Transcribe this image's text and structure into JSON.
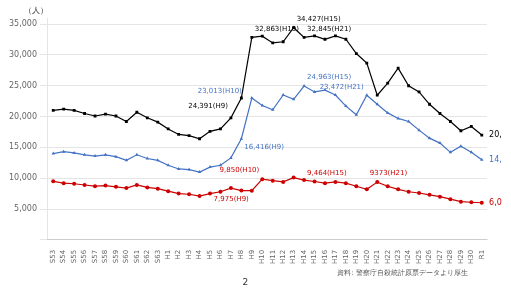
{
  "chart_data": {
    "type": "line",
    "categories": [
      "S53",
      "S54",
      "S55",
      "S56",
      "S57",
      "S58",
      "S59",
      "S60",
      "S61",
      "S62",
      "S63",
      "H1",
      "H2",
      "H3",
      "H4",
      "H5",
      "H6",
      "H7",
      "H8",
      "H9",
      "H10",
      "H11",
      "H12",
      "H13",
      "H14",
      "H15",
      "H16",
      "H17",
      "H18",
      "H19",
      "H20",
      "H21",
      "H22",
      "H23",
      "H24",
      "H25",
      "H26",
      "H27",
      "H28",
      "H29",
      "H30",
      "R1"
    ],
    "series": [
      {
        "color": "#000000",
        "marker": "square",
        "values": [
          21000,
          21200,
          21000,
          20500,
          20100,
          20400,
          20100,
          19200,
          20700,
          19800,
          19100,
          18000,
          17100,
          16900,
          16400,
          17600,
          18000,
          19800,
          23013,
          32863,
          33048,
          31957,
          32143,
          34427,
          32845,
          33093,
          32552,
          33093,
          32552,
          30229,
          28688,
          23472,
          25427,
          27858,
          25000,
          24000,
          22000,
          20500,
          19200,
          17700,
          18400,
          17000
        ]
      },
      {
        "color": "#4472c4",
        "marker": "triangle",
        "values": [
          14000,
          14300,
          14100,
          13800,
          13600,
          13800,
          13500,
          12900,
          13800,
          13200,
          12900,
          12100,
          11500,
          11400,
          11000,
          11800,
          12100,
          13300,
          16416,
          23013,
          21800,
          21100,
          23500,
          22800,
          24963,
          24000,
          24300,
          23500,
          21700,
          20300,
          23472,
          22000,
          20600,
          19700,
          19200,
          17800,
          16500,
          15700,
          14200,
          15200,
          14200,
          13000
        ]
      },
      {
        "color": "#cc0000",
        "marker": "circle",
        "values": [
          9500,
          9200,
          9100,
          8900,
          8700,
          8800,
          8600,
          8400,
          8900,
          8500,
          8300,
          7900,
          7500,
          7400,
          7100,
          7500,
          7800,
          8400,
          8000,
          7975,
          9850,
          9600,
          9400,
          10100,
          9700,
          9464,
          9200,
          9400,
          9200,
          8700,
          8200,
          9373,
          8700,
          8200,
          7800,
          7600,
          7300,
          7000,
          6600,
          6200,
          6100,
          6019
        ]
      }
    ],
    "ylabel": "（人）",
    "ylim": [
      0,
      36000
    ],
    "yticks": [
      {
        "value": 0,
        "label": ""
      },
      {
        "value": 5000,
        "label": "5,000"
      },
      {
        "value": 10000,
        "label": "10,000"
      },
      {
        "value": 15000,
        "label": "15,000"
      },
      {
        "value": 20000,
        "label": "20,000"
      },
      {
        "value": 25000,
        "label": "25,000"
      },
      {
        "value": 30000,
        "label": "30,000"
      },
      {
        "value": 35000,
        "label": "35,000"
      }
    ],
    "grid": true,
    "annotations": [
      {
        "text": "24,391(H9)",
        "x": "H7",
        "y": 19800,
        "color": "#000000"
      },
      {
        "text": "32,863(H10)",
        "x": "H9",
        "y": 32863,
        "color": "#000000"
      },
      {
        "text": "34,427(H15)",
        "x": "H13",
        "y": 34427,
        "color": "#000000"
      },
      {
        "text": "32,845(H21)",
        "x": "H14",
        "y": 32845,
        "color": "#000000"
      },
      {
        "text": "16,416(H9)",
        "x": "H8",
        "y": 16416,
        "color": "#4472c4"
      },
      {
        "text": "23,013(H10)",
        "x": "H9",
        "y": 23013,
        "color": "#4472c4"
      },
      {
        "text": "24,963(H15)",
        "x": "H14",
        "y": 24963,
        "color": "#4472c4"
      },
      {
        "text": "23,472(H21)",
        "x": "H20",
        "y": 23472,
        "color": "#4472c4"
      },
      {
        "text": "7,975(H9)",
        "x": "H9",
        "y": 7975,
        "color": "#cc0000"
      },
      {
        "text": "9,850(H10)",
        "x": "H10",
        "y": 9850,
        "color": "#cc0000"
      },
      {
        "text": "9,464(H15)",
        "x": "H14",
        "y": 9464,
        "color": "#cc0000"
      },
      {
        "text": "9373(H21)",
        "x": "H20",
        "y": 9373,
        "color": "#cc0000"
      }
    ],
    "right_labels": [
      {
        "text": "20,",
        "y": 17000,
        "color": "#000000"
      },
      {
        "text": "14,",
        "y": 13000,
        "color": "#4472c4"
      },
      {
        "text": "6,0",
        "y": 6019,
        "color": "#cc0000"
      }
    ],
    "source": "資料: 警察庁自殺統計原票データより厚生",
    "page": "2"
  }
}
